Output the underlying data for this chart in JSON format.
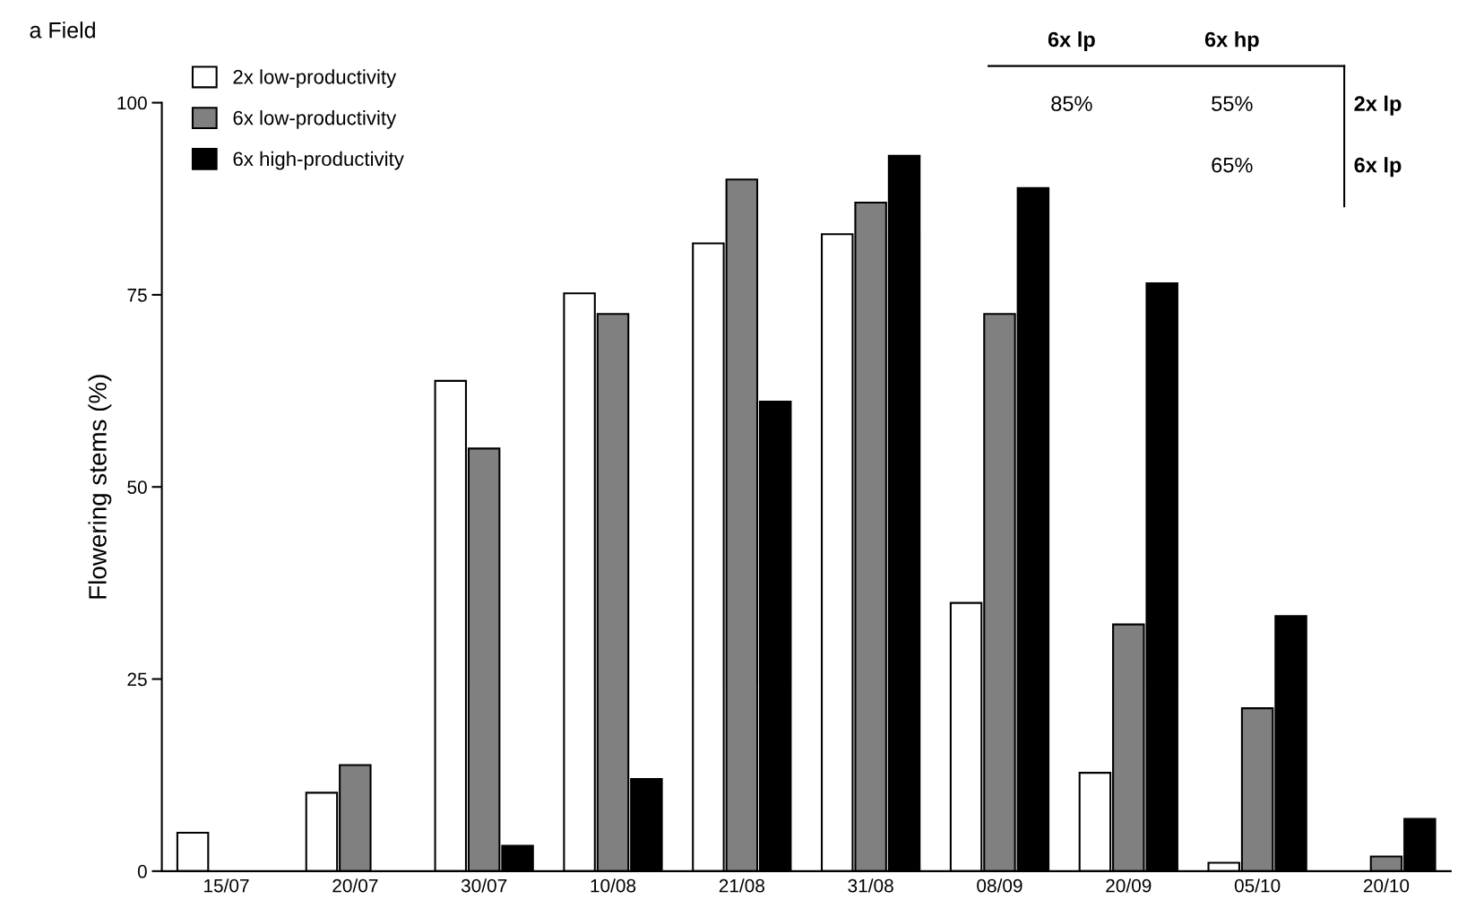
{
  "chart_data": {
    "type": "bar",
    "title": "a Field",
    "ylabel": "Flowering stems (%)",
    "categories": [
      "15/07",
      "20/07",
      "30/07",
      "10/08",
      "21/08",
      "31/08",
      "08/09",
      "20/09",
      "05/10",
      "20/10"
    ],
    "series": [
      {
        "name": "2x low-productivity",
        "color": "#ffffff",
        "values": [
          5.0,
          10.2,
          63.8,
          75.2,
          81.7,
          82.9,
          34.9,
          12.8,
          1.1,
          null
        ]
      },
      {
        "name": "6x low-productivity",
        "color": "#808080",
        "values": [
          null,
          13.8,
          55.0,
          72.5,
          90.0,
          87.0,
          72.5,
          32.1,
          21.2,
          1.9
        ]
      },
      {
        "name": "6x high-productivity",
        "color": "#000000",
        "values": [
          null,
          null,
          3.3,
          12.0,
          61.1,
          93.1,
          88.9,
          76.5,
          33.2,
          6.8
        ]
      }
    ],
    "ylim": [
      0,
      100
    ],
    "yticks": [
      0,
      25,
      50,
      75,
      100
    ],
    "grid": false,
    "legend": "top left",
    "annotations": [
      "6x lp",
      "6x hp",
      "85%",
      "55%",
      "2x lp",
      "65%",
      "6x lp"
    ]
  }
}
